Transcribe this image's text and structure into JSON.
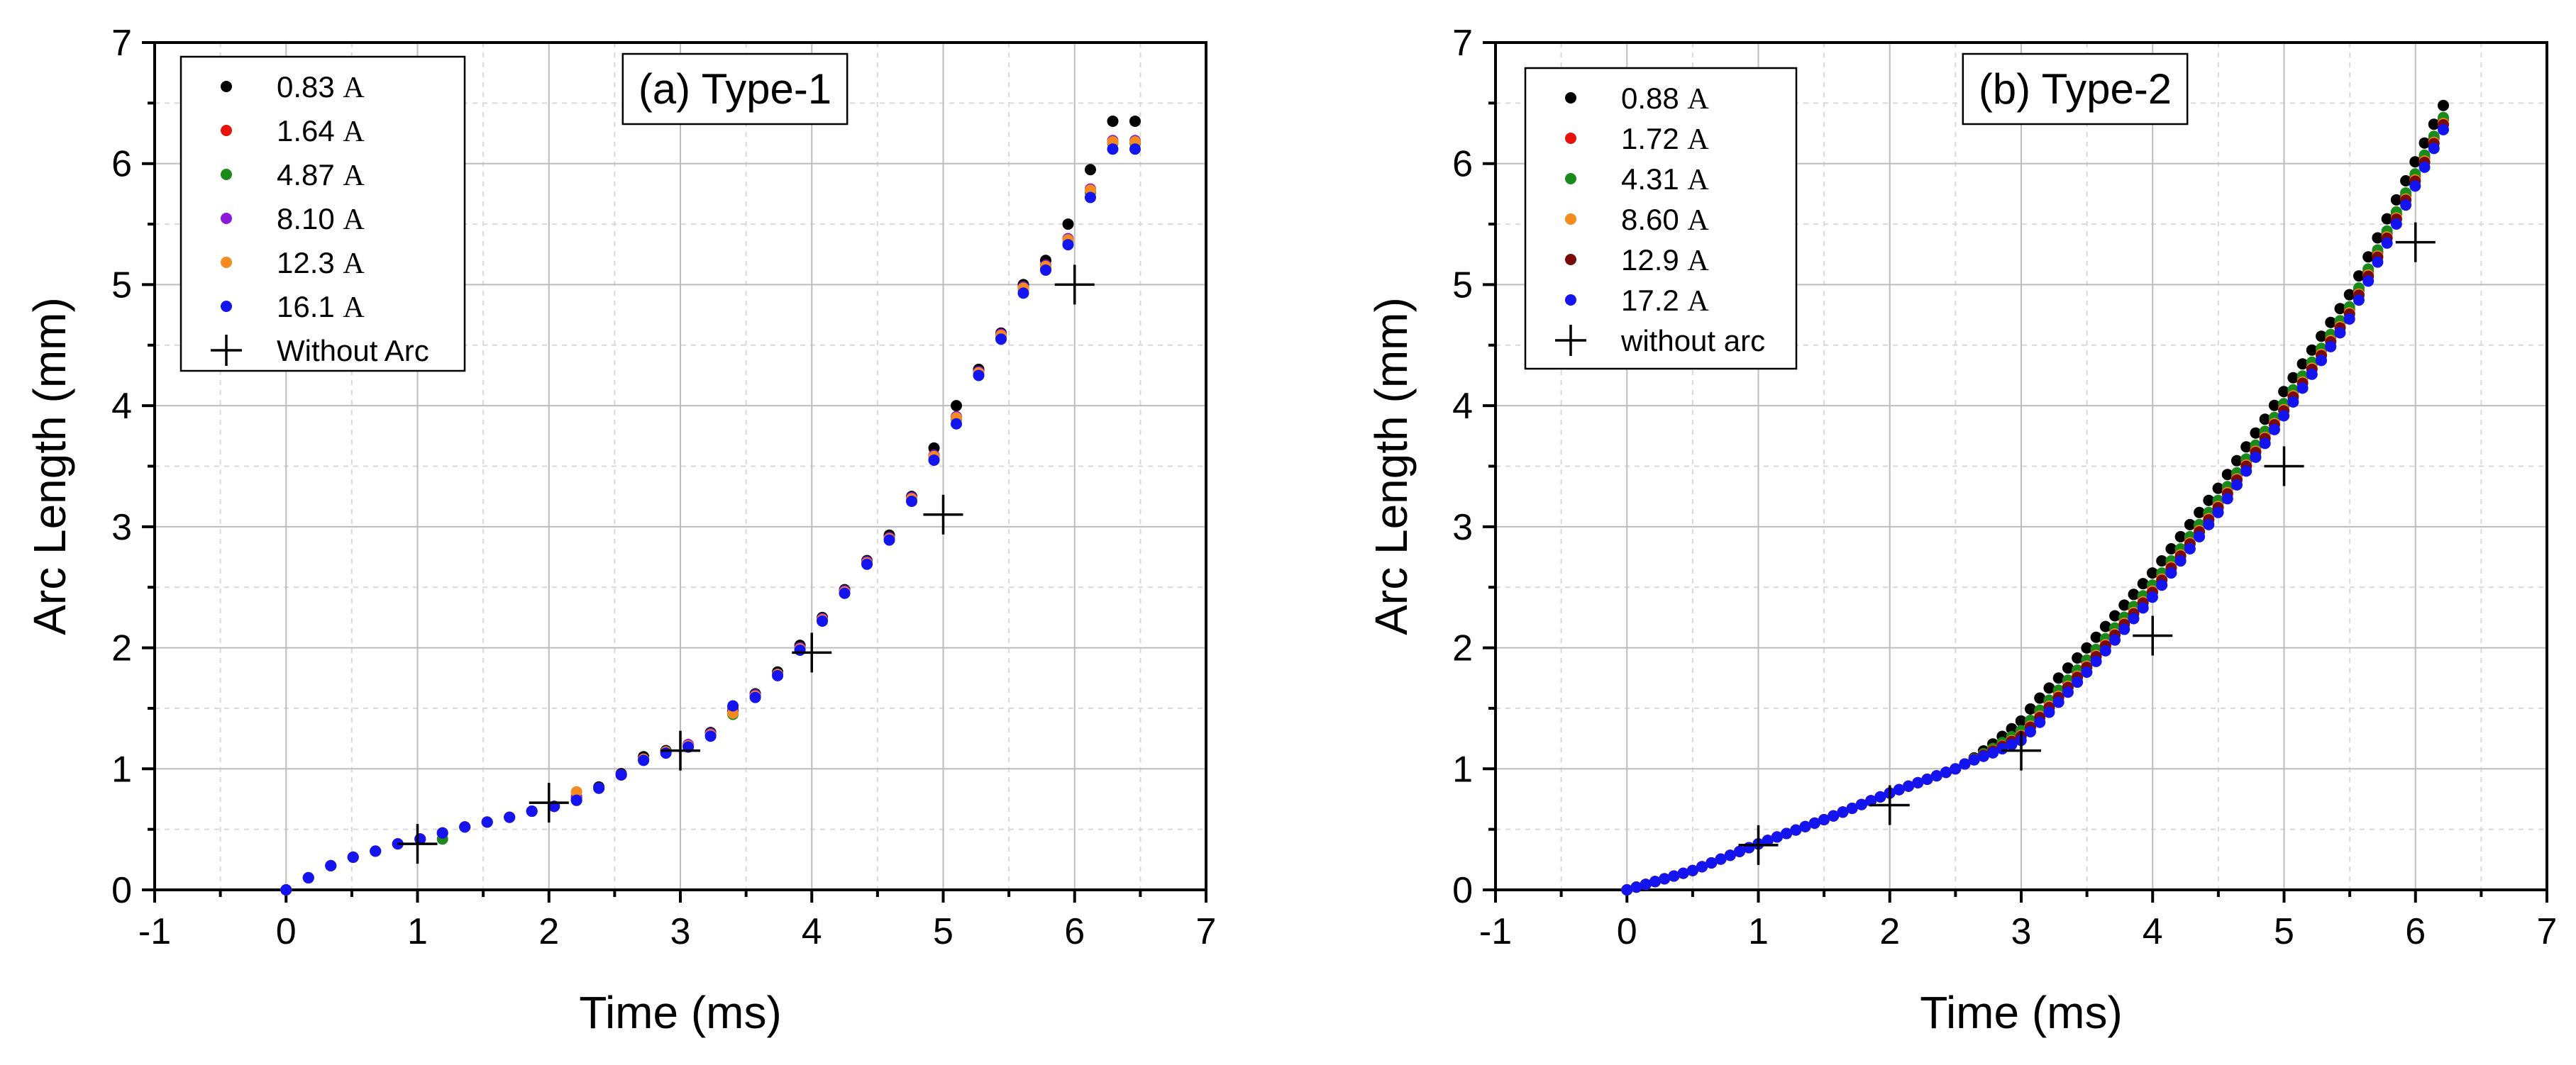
{
  "chart_data": [
    {
      "type": "scatter",
      "title": "(a) Type-1",
      "xlabel": "Time (ms)",
      "ylabel": "Arc Length (mm)",
      "xlim": [
        -1,
        7
      ],
      "ylim": [
        0,
        7
      ],
      "x_ticks": [
        "-1",
        "0",
        "1",
        "2",
        "3",
        "4",
        "5",
        "6",
        "7"
      ],
      "y_ticks": [
        "0",
        "1",
        "2",
        "3",
        "4",
        "5",
        "6",
        "7"
      ],
      "grid": true,
      "legend_position": "top-left",
      "series": [
        {
          "name": "0.83",
          "unit": "A",
          "color": "#000000",
          "marker": "dot",
          "x": [
            0,
            0.17,
            0.34,
            0.51,
            0.68,
            0.85,
            1.02,
            1.19,
            1.36,
            1.53,
            1.7,
            1.87,
            2.04,
            2.21,
            2.38,
            2.55,
            2.72,
            2.89,
            3.06,
            3.23,
            3.4,
            3.57,
            3.74,
            3.91,
            4.08,
            4.25,
            4.42,
            4.59,
            4.76,
            4.93,
            5.1,
            5.27,
            5.44,
            5.61,
            5.78,
            5.95,
            6.12,
            6.29,
            6.46
          ],
          "y": [
            0,
            0.1,
            0.2,
            0.27,
            0.32,
            0.38,
            0.42,
            0.47,
            0.52,
            0.56,
            0.6,
            0.65,
            0.69,
            0.74,
            0.85,
            0.96,
            1.1,
            1.15,
            1.2,
            1.3,
            1.48,
            1.62,
            1.8,
            2.02,
            2.25,
            2.48,
            2.72,
            2.93,
            3.25,
            3.65,
            4.0,
            4.3,
            4.6,
            5.0,
            5.2,
            5.5,
            5.95,
            6.35,
            6.35
          ]
        },
        {
          "name": "1.64",
          "unit": "A",
          "color": "#e8120c",
          "marker": "dot",
          "x": [
            0,
            0.17,
            0.34,
            0.51,
            0.68,
            0.85,
            1.02,
            1.19,
            1.36,
            1.53,
            1.7,
            1.87,
            2.04,
            2.21,
            2.38,
            2.55,
            2.72,
            2.89,
            3.06,
            3.23,
            3.4,
            3.57,
            3.74,
            3.91,
            4.08,
            4.25,
            4.42,
            4.59,
            4.76,
            4.93,
            5.1,
            5.27,
            5.44,
            5.61,
            5.78,
            5.95,
            6.12,
            6.29,
            6.46
          ],
          "y": [
            0,
            0.1,
            0.2,
            0.27,
            0.32,
            0.38,
            0.42,
            0.47,
            0.52,
            0.56,
            0.6,
            0.65,
            0.69,
            0.76,
            0.84,
            0.95,
            1.08,
            1.14,
            1.19,
            1.28,
            1.46,
            1.6,
            1.78,
            1.99,
            2.23,
            2.46,
            2.7,
            2.9,
            3.23,
            3.58,
            3.9,
            4.27,
            4.58,
            4.97,
            5.15,
            5.37,
            5.78,
            6.18,
            6.18
          ]
        },
        {
          "name": "4.87",
          "unit": "A",
          "color": "#1a8a1a",
          "marker": "dot",
          "x": [
            0,
            0.17,
            0.34,
            0.51,
            0.68,
            0.85,
            1.02,
            1.19,
            1.36,
            1.53,
            1.7,
            1.87,
            2.04,
            2.21,
            2.38,
            2.55,
            2.72,
            2.89,
            3.06,
            3.23,
            3.4,
            3.57,
            3.74,
            3.91,
            4.08,
            4.25,
            4.42,
            4.59,
            4.76,
            4.93,
            5.1,
            5.27,
            5.44,
            5.61,
            5.78,
            5.95,
            6.12,
            6.29,
            6.46
          ],
          "y": [
            0,
            0.1,
            0.2,
            0.27,
            0.32,
            0.38,
            0.42,
            0.42,
            0.52,
            0.56,
            0.6,
            0.65,
            0.69,
            0.76,
            0.84,
            0.95,
            1.08,
            1.14,
            1.19,
            1.28,
            1.45,
            1.6,
            1.78,
            1.99,
            2.23,
            2.46,
            2.7,
            2.9,
            3.22,
            3.57,
            3.89,
            4.26,
            4.57,
            4.96,
            5.14,
            5.36,
            5.76,
            6.17,
            6.17
          ]
        },
        {
          "name": "8.10",
          "unit": "A",
          "color": "#8a1ad9",
          "marker": "dot",
          "x": [
            0,
            0.17,
            0.34,
            0.51,
            0.68,
            0.85,
            1.02,
            1.19,
            1.36,
            1.53,
            1.7,
            1.87,
            2.04,
            2.21,
            2.38,
            2.55,
            2.72,
            2.89,
            3.06,
            3.23,
            3.4,
            3.57,
            3.74,
            3.91,
            4.08,
            4.25,
            4.42,
            4.59,
            4.76,
            4.93,
            5.1,
            5.27,
            5.44,
            5.61,
            5.78,
            5.95,
            6.12,
            6.29,
            6.46
          ],
          "y": [
            0,
            0.1,
            0.2,
            0.27,
            0.32,
            0.38,
            0.42,
            0.47,
            0.52,
            0.56,
            0.6,
            0.65,
            0.69,
            0.77,
            0.84,
            0.95,
            1.08,
            1.14,
            1.2,
            1.29,
            1.5,
            1.61,
            1.78,
            2.0,
            2.24,
            2.47,
            2.71,
            2.91,
            3.24,
            3.59,
            3.91,
            4.28,
            4.59,
            4.98,
            5.16,
            5.38,
            5.79,
            6.19,
            6.19
          ]
        },
        {
          "name": "12.3",
          "unit": "A",
          "color": "#f58a1f",
          "marker": "dot",
          "x": [
            0,
            0.17,
            0.34,
            0.51,
            0.68,
            0.85,
            1.02,
            1.19,
            1.36,
            1.53,
            1.7,
            1.87,
            2.04,
            2.21,
            2.38,
            2.55,
            2.72,
            2.89,
            3.06,
            3.23,
            3.4,
            3.57,
            3.74,
            3.91,
            4.08,
            4.25,
            4.42,
            4.59,
            4.76,
            4.93,
            5.1,
            5.27,
            5.44,
            5.61,
            5.78,
            5.95,
            6.12,
            6.29,
            6.46
          ],
          "y": [
            0,
            0.1,
            0.2,
            0.27,
            0.32,
            0.38,
            0.42,
            0.47,
            0.52,
            0.56,
            0.6,
            0.65,
            0.69,
            0.81,
            0.84,
            0.95,
            1.08,
            1.14,
            1.19,
            1.28,
            1.46,
            1.6,
            1.78,
            1.99,
            2.23,
            2.46,
            2.7,
            2.9,
            3.23,
            3.58,
            3.9,
            4.27,
            4.58,
            4.97,
            5.15,
            5.37,
            5.78,
            6.18,
            6.18
          ]
        },
        {
          "name": "16.1",
          "unit": "A",
          "color": "#1414f0",
          "marker": "dot",
          "x": [
            0,
            0.17,
            0.34,
            0.51,
            0.68,
            0.85,
            1.02,
            1.19,
            1.36,
            1.53,
            1.7,
            1.87,
            2.04,
            2.21,
            2.38,
            2.55,
            2.72,
            2.89,
            3.06,
            3.23,
            3.4,
            3.57,
            3.74,
            3.91,
            4.08,
            4.25,
            4.42,
            4.59,
            4.76,
            4.93,
            5.1,
            5.27,
            5.44,
            5.61,
            5.78,
            5.95,
            6.12,
            6.29,
            6.46
          ],
          "y": [
            0,
            0.1,
            0.2,
            0.27,
            0.32,
            0.38,
            0.42,
            0.47,
            0.52,
            0.56,
            0.6,
            0.65,
            0.69,
            0.74,
            0.84,
            0.95,
            1.07,
            1.13,
            1.18,
            1.27,
            1.52,
            1.59,
            1.77,
            1.98,
            2.22,
            2.45,
            2.69,
            2.89,
            3.21,
            3.55,
            3.85,
            4.25,
            4.55,
            4.93,
            5.12,
            5.33,
            5.72,
            6.12,
            6.12
          ]
        },
        {
          "name": "Without Arc",
          "unit": "",
          "color": "#000000",
          "marker": "plus",
          "x": [
            1,
            2,
            3,
            4,
            5,
            6
          ],
          "y": [
            0.38,
            0.72,
            1.15,
            1.96,
            3.1,
            5.0
          ]
        }
      ]
    },
    {
      "type": "scatter",
      "title": "(b) Type-2",
      "xlabel": "Time (ms)",
      "ylabel": "Arc Length (mm)",
      "xlim": [
        -1,
        7
      ],
      "ylim": [
        0,
        7
      ],
      "x_ticks": [
        "-1",
        "0",
        "1",
        "2",
        "3",
        "4",
        "5",
        "6",
        "7"
      ],
      "y_ticks": [
        "0",
        "1",
        "2",
        "3",
        "4",
        "5",
        "6",
        "7"
      ],
      "grid": true,
      "legend_position": "top-left",
      "series": [
        {
          "name": "0.88",
          "unit": "A",
          "color": "#000000",
          "marker": "dot",
          "x_start": 0,
          "x_step": 0.0714,
          "y_offset": 0.12,
          "x": [
            0,
            0.5,
            1.0,
            1.5,
            2.0,
            2.5,
            2.8,
            3.0,
            3.5,
            4.0,
            4.5,
            5.0,
            5.5,
            6.0,
            6.23
          ],
          "y": [
            0,
            0.16,
            0.38,
            0.58,
            0.8,
            1.0,
            1.17,
            1.3,
            1.88,
            2.5,
            3.2,
            4.0,
            4.8,
            5.9,
            6.4
          ]
        },
        {
          "name": "1.72",
          "unit": "A",
          "color": "#e8120c",
          "marker": "dot",
          "x_start": 0,
          "x_step": 0.0714,
          "y_offset": 0.0,
          "x": [
            0,
            0.5,
            1.0,
            1.5,
            2.0,
            2.5,
            2.8,
            3.0,
            3.5,
            4.0,
            4.5,
            5.0,
            5.5,
            6.0,
            6.23
          ],
          "y": [
            0,
            0.16,
            0.38,
            0.58,
            0.8,
            1.0,
            1.17,
            1.3,
            1.88,
            2.5,
            3.2,
            4.0,
            4.8,
            5.9,
            6.4
          ]
        },
        {
          "name": "4.31",
          "unit": "A",
          "color": "#1a8a1a",
          "marker": "dot",
          "x_start": 0,
          "x_step": 0.0714,
          "y_offset": 0.02,
          "x": [
            0,
            0.5,
            1.0,
            1.5,
            2.0,
            2.5,
            2.8,
            3.0,
            3.5,
            4.0,
            4.5,
            5.0,
            5.5,
            6.0,
            6.23
          ],
          "y": [
            0,
            0.16,
            0.38,
            0.58,
            0.8,
            1.0,
            1.17,
            1.3,
            1.88,
            2.5,
            3.2,
            4.0,
            4.8,
            5.9,
            6.4
          ]
        },
        {
          "name": "8.60",
          "unit": "A",
          "color": "#f58a1f",
          "marker": "dot",
          "x_start": 0,
          "x_step": 0.0714,
          "y_offset": -0.03,
          "x": [
            0,
            0.5,
            1.0,
            1.5,
            2.0,
            2.5,
            2.8,
            3.0,
            3.5,
            4.0,
            4.5,
            5.0,
            5.5,
            6.0,
            6.23
          ],
          "y": [
            0,
            0.16,
            0.38,
            0.58,
            0.8,
            1.0,
            1.17,
            1.3,
            1.88,
            2.5,
            3.2,
            4.0,
            4.8,
            5.9,
            6.4
          ]
        },
        {
          "name": "12.9",
          "unit": "A",
          "color": "#7a0a0a",
          "marker": "dot",
          "x_start": 0,
          "x_step": 0.0714,
          "y_offset": -0.04,
          "x": [
            0,
            0.5,
            1.0,
            1.5,
            2.0,
            2.5,
            2.8,
            3.0,
            3.5,
            4.0,
            4.5,
            5.0,
            5.5,
            6.0,
            6.23
          ],
          "y": [
            0,
            0.16,
            0.38,
            0.58,
            0.8,
            1.0,
            1.17,
            1.3,
            1.88,
            2.5,
            3.2,
            4.0,
            4.8,
            5.9,
            6.4
          ]
        },
        {
          "name": "17.2",
          "unit": "A",
          "color": "#1414f0",
          "marker": "dot",
          "x_start": 0,
          "x_step": 0.0714,
          "y_offset": -0.08,
          "x": [
            0,
            0.5,
            1.0,
            1.5,
            2.0,
            2.5,
            2.8,
            3.0,
            3.5,
            4.0,
            4.5,
            5.0,
            5.5,
            6.0,
            6.23
          ],
          "y": [
            0,
            0.16,
            0.38,
            0.58,
            0.8,
            1.0,
            1.17,
            1.3,
            1.88,
            2.5,
            3.2,
            4.0,
            4.8,
            5.9,
            6.4
          ]
        },
        {
          "name": "without arc",
          "unit": "",
          "color": "#000000",
          "marker": "plus",
          "x": [
            1,
            2,
            3,
            4,
            5,
            6
          ],
          "y": [
            0.37,
            0.7,
            1.15,
            2.1,
            3.5,
            5.35
          ]
        }
      ]
    }
  ]
}
